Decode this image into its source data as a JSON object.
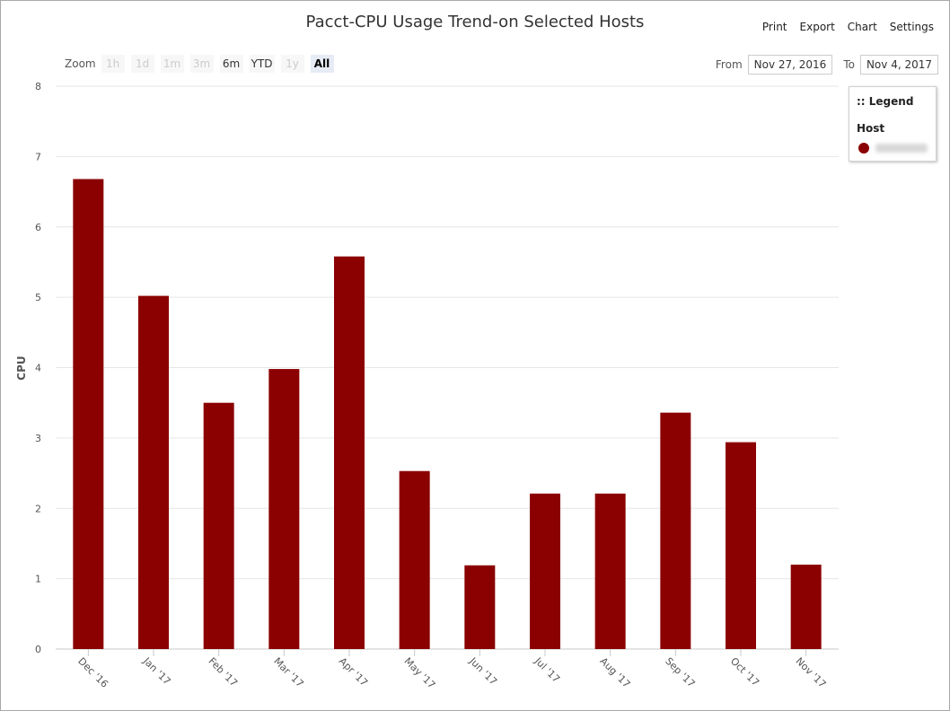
{
  "chart_data": {
    "type": "bar",
    "title": "Pacct-CPU Usage Trend-on Selected Hosts",
    "ylabel": "CPU",
    "xlabel": "",
    "ylim": [
      0,
      8
    ],
    "yticks": [
      0,
      1,
      2,
      3,
      4,
      5,
      6,
      7,
      8
    ],
    "categories": [
      "Dec '16",
      "Jan '17",
      "Feb '17",
      "Mar '17",
      "Apr '17",
      "May '17",
      "Jun '17",
      "Jul '17",
      "Aug '17",
      "Sep '17",
      "Oct '17",
      "Nov '17"
    ],
    "series": [
      {
        "values": [
          6.68,
          5.02,
          3.5,
          3.98,
          5.58,
          2.53,
          1.19,
          2.21,
          2.21,
          3.36,
          2.94,
          1.2
        ],
        "color": "#8b0000"
      }
    ],
    "grid": true,
    "legend_position": "top-right"
  },
  "menu": {
    "print": "Print",
    "export": "Export",
    "chart": "Chart",
    "settings": "Settings"
  },
  "zoom": {
    "label": "Zoom",
    "buttons": [
      {
        "label": "1h",
        "state": "disabled"
      },
      {
        "label": "1d",
        "state": "disabled"
      },
      {
        "label": "1m",
        "state": "disabled"
      },
      {
        "label": "3m",
        "state": "disabled"
      },
      {
        "label": "6m",
        "state": "enabled"
      },
      {
        "label": "YTD",
        "state": "enabled"
      },
      {
        "label": "1y",
        "state": "disabled"
      },
      {
        "label": "All",
        "state": "selected"
      }
    ]
  },
  "range": {
    "from_label": "From",
    "from_value": "Nov 27, 2016",
    "to_label": "To",
    "to_value": "Nov 4, 2017"
  },
  "legend": {
    "title": ":: Legend",
    "group": "Host",
    "item_color": "#8b0000"
  }
}
